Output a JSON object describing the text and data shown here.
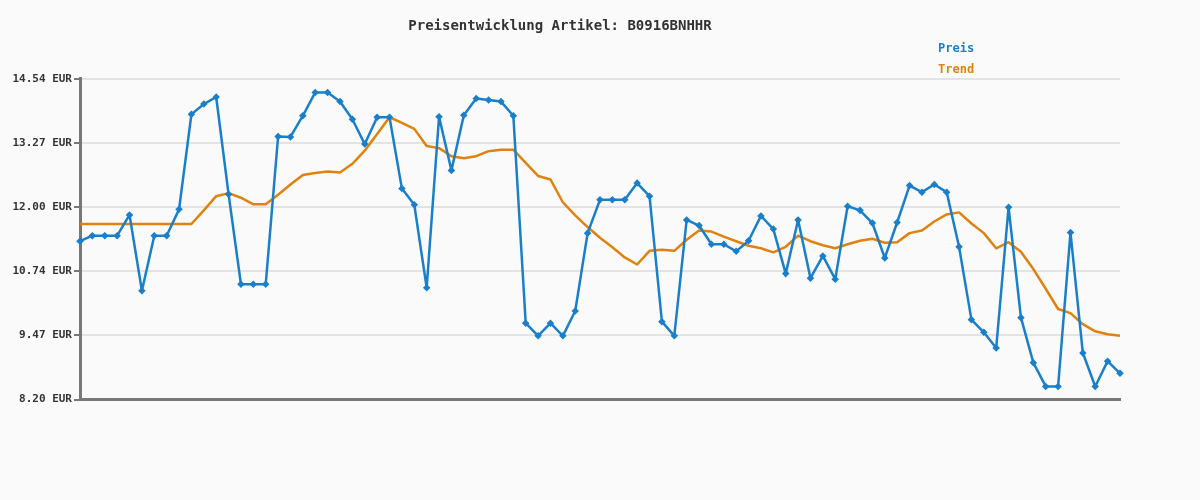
{
  "chart_data": {
    "type": "line",
    "title": "Preisentwicklung Artikel: B0916BNHHR",
    "categories": [
      null,
      null,
      null,
      null,
      null,
      null,
      null,
      null,
      null,
      null,
      null,
      null,
      null,
      null,
      null,
      null,
      null,
      null,
      null,
      null,
      null,
      null,
      null,
      null,
      null,
      null,
      null,
      null,
      null,
      null,
      null,
      null,
      null,
      null,
      null,
      null,
      null,
      null,
      null,
      null,
      null,
      null,
      null,
      null,
      null,
      null,
      null,
      null,
      null,
      null,
      null,
      null,
      null,
      null,
      null,
      null,
      null,
      null,
      null,
      null,
      null,
      null,
      null,
      null,
      null,
      null,
      null,
      null,
      null,
      null,
      null,
      null,
      null,
      null,
      null,
      null,
      null,
      null,
      null,
      null,
      null,
      null,
      null,
      null,
      null
    ],
    "series": [
      {
        "name": "Preis",
        "color": "#1a7fca",
        "marker": "diamond",
        "values": [
          11.33,
          11.44,
          11.44,
          11.44,
          11.85,
          10.35,
          11.44,
          11.44,
          11.96,
          13.84,
          14.04,
          14.18,
          12.26,
          10.48,
          10.48,
          10.48,
          13.4,
          13.39,
          13.81,
          14.27,
          14.27,
          14.09,
          13.74,
          13.25,
          13.78,
          13.78,
          12.37,
          12.05,
          10.41,
          13.79,
          12.73,
          13.82,
          14.15,
          14.12,
          14.09,
          13.81,
          9.71,
          9.46,
          9.71,
          9.46,
          9.95,
          11.49,
          12.15,
          12.15,
          12.15,
          12.48,
          12.22,
          9.74,
          9.46,
          11.75,
          11.64,
          11.27,
          11.27,
          11.13,
          11.34,
          11.83,
          11.57,
          10.69,
          11.75,
          10.6,
          11.04,
          10.58,
          12.02,
          11.94,
          11.69,
          11.0,
          11.7,
          12.43,
          12.3,
          12.45,
          12.3,
          11.22,
          9.78,
          9.53,
          9.22,
          12.0,
          9.82,
          8.93,
          8.46,
          8.46,
          11.5,
          9.12,
          8.46,
          8.96,
          8.72
        ]
      },
      {
        "name": "Trend",
        "color": "#e0820f",
        "values": [
          11.67,
          11.67,
          11.67,
          11.67,
          11.67,
          11.67,
          11.67,
          11.67,
          11.67,
          11.67,
          11.94,
          12.22,
          12.28,
          12.19,
          12.06,
          12.06,
          12.25,
          12.45,
          12.64,
          12.68,
          12.71,
          12.69,
          12.86,
          13.12,
          13.45,
          13.78,
          13.67,
          13.55,
          13.21,
          13.17,
          13.01,
          12.97,
          13.01,
          13.11,
          13.14,
          13.14,
          12.88,
          12.62,
          12.55,
          12.1,
          11.84,
          11.61,
          11.4,
          11.21,
          11.01,
          10.87,
          11.14,
          11.16,
          11.14,
          11.36,
          11.54,
          11.52,
          11.42,
          11.33,
          11.24,
          11.19,
          11.11,
          11.22,
          11.44,
          11.33,
          11.25,
          11.19,
          11.27,
          11.34,
          11.38,
          11.3,
          11.31,
          11.49,
          11.54,
          11.72,
          11.86,
          11.9,
          11.68,
          11.49,
          11.19,
          11.31,
          11.12,
          10.78,
          10.39,
          9.99,
          9.91,
          9.69,
          9.55,
          9.49,
          9.46
        ]
      }
    ],
    "ylim": [
      8.2,
      14.54
    ],
    "yticks": [
      {
        "value": 8.2,
        "label": "8.20 EUR"
      },
      {
        "value": 9.47,
        "label": "9.47 EUR"
      },
      {
        "value": 10.74,
        "label": "10.74 EUR"
      },
      {
        "value": 12.0,
        "label": "12.00 EUR"
      },
      {
        "value": 13.27,
        "label": "13.27 EUR"
      },
      {
        "value": 14.54,
        "label": "14.54 EUR"
      }
    ],
    "grid": "y",
    "legend": "top right"
  }
}
